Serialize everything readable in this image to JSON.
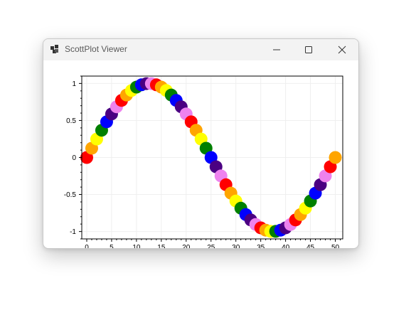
{
  "window": {
    "title": "ScottPlot Viewer",
    "controls": {
      "minimize": "minimize-icon",
      "maximize": "maximize-icon",
      "close": "close-icon"
    }
  },
  "chart_data": {
    "type": "scatter",
    "title": "",
    "xlabel": "",
    "ylabel": "",
    "xlim": [
      -1,
      51.5
    ],
    "ylim": [
      -1.1,
      1.1
    ],
    "x_ticks": [
      "0",
      "5",
      "10",
      "15",
      "20",
      "25",
      "30",
      "35",
      "40",
      "45",
      "50"
    ],
    "y_ticks": [
      "1",
      "0.5",
      "0",
      "-0.5",
      "-1"
    ],
    "grid": true,
    "palette": [
      "#ff0000",
      "#ffa500",
      "#ffff00",
      "#008000",
      "#0000ff",
      "#4b0082",
      "#ee82ee"
    ],
    "x": [
      0,
      1,
      2,
      3,
      4,
      5,
      6,
      7,
      8,
      9,
      10,
      11,
      12,
      13,
      14,
      15,
      16,
      17,
      18,
      19,
      20,
      21,
      22,
      23,
      24,
      25,
      26,
      27,
      28,
      29,
      30,
      31,
      32,
      33,
      34,
      35,
      36,
      37,
      38,
      39,
      40,
      41,
      42,
      43,
      44,
      45,
      46,
      47,
      48,
      49,
      50
    ],
    "y": [
      0,
      0.125,
      0.249,
      0.368,
      0.482,
      0.588,
      0.685,
      0.771,
      0.844,
      0.905,
      0.951,
      0.982,
      0.998,
      0.998,
      0.982,
      0.951,
      0.905,
      0.844,
      0.771,
      0.685,
      0.588,
      0.482,
      0.368,
      0.249,
      0.125,
      0,
      -0.125,
      -0.249,
      -0.368,
      -0.482,
      -0.588,
      -0.685,
      -0.771,
      -0.844,
      -0.905,
      -0.951,
      -0.982,
      -0.998,
      -0.998,
      -0.982,
      -0.951,
      -0.905,
      -0.844,
      -0.771,
      -0.685,
      -0.588,
      -0.482,
      -0.368,
      -0.249,
      -0.125,
      0
    ]
  }
}
